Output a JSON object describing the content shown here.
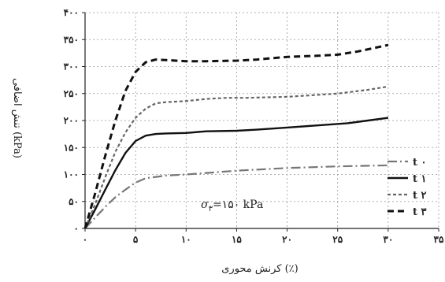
{
  "chart_data": {
    "type": "line",
    "xlabel": "کرنش محوری (٪)",
    "ylabel": "تنش اضافی (kPa)",
    "xlim": [
      0,
      35
    ],
    "ylim": [
      0,
      400
    ],
    "x_ticks": [
      0,
      5,
      10,
      15,
      20,
      25,
      30,
      35
    ],
    "x_tick_labels": [
      "۰",
      "۵",
      "۱۰",
      "۱۵",
      "۲۰",
      "۲۵",
      "۳۰",
      "۳۵"
    ],
    "y_ticks": [
      0,
      50,
      100,
      150,
      200,
      250,
      300,
      350,
      400
    ],
    "y_tick_labels": [
      "۰",
      "۵۰",
      "۱۰۰",
      "۱۵۰",
      "۲۰۰",
      "۲۵۰",
      "۳۰۰",
      "۳۵۰",
      "۴۰۰"
    ],
    "grid": "dotted",
    "legend_position": "bottom-right",
    "annotation": {
      "symbol": "σ",
      "subscript": "۳",
      "text": "=۱۵۰ kPa",
      "x": 14,
      "y": 45
    },
    "series": [
      {
        "name": "t ۰",
        "color": "#777777",
        "dash": "dashdot",
        "x": [
          0,
          1,
          2,
          3,
          4,
          5,
          6,
          8,
          10,
          15,
          20,
          25,
          30
        ],
        "y": [
          0,
          20,
          40,
          58,
          72,
          85,
          93,
          98,
          100,
          107,
          112,
          115,
          117
        ]
      },
      {
        "name": "t ۱",
        "color": "#111111",
        "dash": "solid",
        "x": [
          0,
          1,
          2,
          3,
          4,
          5,
          6,
          7,
          8,
          10,
          12,
          15,
          17,
          20,
          23,
          26,
          28,
          30
        ],
        "y": [
          0,
          35,
          72,
          108,
          140,
          162,
          172,
          175,
          176,
          177,
          180,
          181,
          183,
          187,
          191,
          195,
          200,
          205
        ]
      },
      {
        "name": "t ۲",
        "color": "#666666",
        "dash": "dashed",
        "x": [
          0,
          1,
          2,
          3,
          4,
          5,
          6,
          7,
          8,
          10,
          12,
          14,
          16,
          20,
          25,
          28,
          30
        ],
        "y": [
          0,
          45,
          95,
          142,
          178,
          205,
          222,
          232,
          234,
          236,
          240,
          242,
          242,
          244,
          250,
          257,
          263
        ]
      },
      {
        "name": "t ۳",
        "color": "#111111",
        "dash": "heavydash",
        "x": [
          0,
          1,
          2,
          3,
          4,
          5,
          6,
          7,
          8,
          10,
          12,
          15,
          17,
          20,
          23,
          25,
          27,
          30
        ],
        "y": [
          0,
          65,
          135,
          200,
          255,
          290,
          308,
          313,
          312,
          310,
          310,
          311,
          313,
          318,
          320,
          322,
          328,
          340
        ]
      }
    ]
  }
}
